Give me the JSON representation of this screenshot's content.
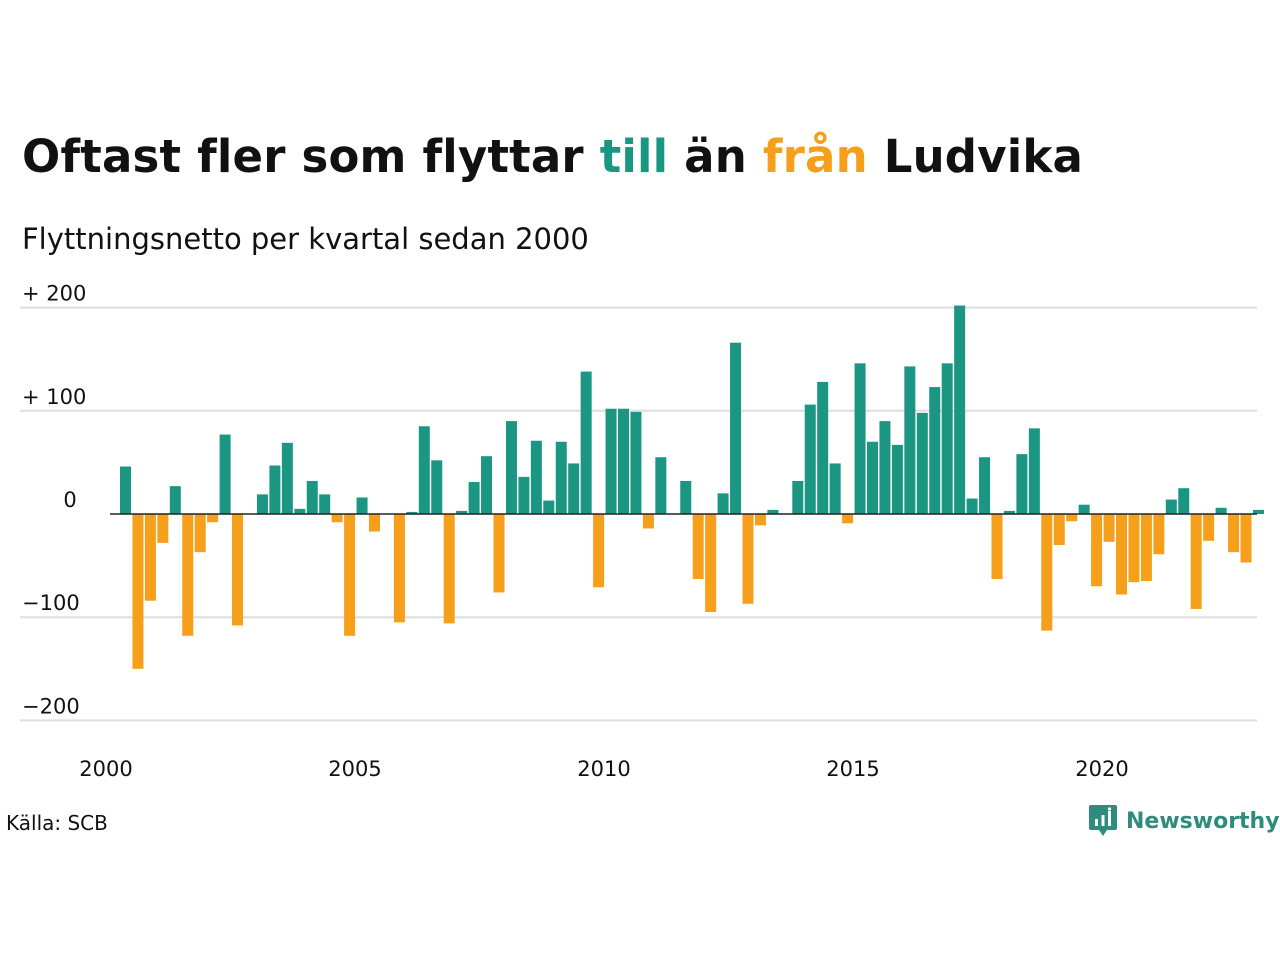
{
  "title": {
    "part1": "Oftast fler som flyttar ",
    "till": "till",
    "part2": " än ",
    "fran": "från",
    "part3": " Ludvika"
  },
  "subtitle": "Flyttningsnetto per kvartal sedan 2000",
  "source": "Källa: SCB",
  "logo_text": "Newsworthy",
  "colors": {
    "positive": "#1a9683",
    "negative": "#f59f1a",
    "grid": "#dedede",
    "text": "#111111"
  },
  "chart_data": {
    "type": "bar",
    "x_start": "2000 Q1",
    "step": "quarter",
    "ylim": [
      -220,
      210
    ],
    "yticks": [
      200,
      100,
      0,
      -100,
      -200
    ],
    "ytick_labels": [
      "+ 200",
      "+ 100",
      "0",
      "−100",
      "−200"
    ],
    "xticks": [
      2000,
      2005,
      2010,
      2015,
      2020
    ],
    "xtick_labels": [
      "2000",
      "2005",
      "2010",
      "2015",
      "2020"
    ],
    "values": [
      46,
      -150,
      -84,
      -28,
      27,
      -118,
      -37,
      -8,
      77,
      -108,
      0,
      19,
      47,
      69,
      5,
      32,
      19,
      -8,
      -118,
      16,
      -17,
      0,
      -105,
      2,
      85,
      52,
      -106,
      3,
      31,
      56,
      -76,
      90,
      36,
      71,
      13,
      70,
      49,
      138,
      -71,
      102,
      102,
      99,
      -14,
      55,
      0,
      32,
      -63,
      -95,
      20,
      166,
      -87,
      -11,
      4,
      0,
      32,
      106,
      128,
      49,
      -9,
      146,
      70,
      90,
      67,
      143,
      98,
      123,
      146,
      202,
      15,
      55,
      -63,
      3,
      58,
      83,
      -113,
      -30,
      -7,
      9,
      -70,
      -27,
      -78,
      -66,
      -65,
      -39,
      14,
      25,
      -92,
      -26,
      6,
      -37,
      -47,
      4
    ]
  }
}
